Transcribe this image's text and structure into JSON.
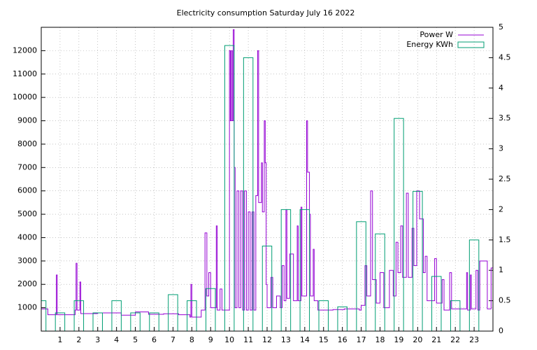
{
  "chart_data": {
    "type": "line",
    "title": "Electricity consumption Saturday July 16 2022",
    "xlim": [
      0,
      24
    ],
    "xticks": [
      1,
      2,
      3,
      4,
      5,
      6,
      7,
      8,
      9,
      10,
      11,
      12,
      13,
      14,
      15,
      16,
      17,
      18,
      19,
      20,
      21,
      22,
      23
    ],
    "ylim": [
      0,
      13000
    ],
    "yticks": [
      1000,
      2000,
      3000,
      4000,
      5000,
      6000,
      7000,
      8000,
      9000,
      10000,
      11000,
      12000
    ],
    "y2lim": [
      0,
      5
    ],
    "y2ticks": [
      0,
      0.5,
      1,
      1.5,
      2,
      2.5,
      3,
      3.5,
      4,
      4.5,
      5
    ],
    "grid": true,
    "legend": "top-right",
    "series": [
      {
        "name": "Power W",
        "color": "#9400d3",
        "style": "steps",
        "x": [
          0,
          0.35,
          0.8,
          0.85,
          1.8,
          1.85,
          1.9,
          2.05,
          2.1,
          3,
          4.25,
          5,
          5.7,
          6.5,
          7.3,
          7.9,
          7.95,
          8,
          8.5,
          8.7,
          8.8,
          8.9,
          9,
          9.3,
          9.35,
          9.5,
          9.6,
          10,
          10.05,
          10.1,
          10.15,
          10.2,
          10.25,
          10.3,
          10.4,
          10.5,
          10.6,
          10.7,
          10.8,
          10.9,
          11,
          11.1,
          11.2,
          11.3,
          11.4,
          11.5,
          11.55,
          11.7,
          11.75,
          11.85,
          11.9,
          11.95,
          12,
          12.2,
          12.3,
          12.5,
          12.7,
          12.8,
          12.9,
          13,
          13.05,
          13.2,
          13.4,
          13.6,
          13.65,
          13.8,
          13.85,
          14.1,
          14.15,
          14.25,
          14.3,
          14.45,
          14.5,
          14.7,
          15.5,
          16.1,
          16.9,
          17,
          17.2,
          17.3,
          17.5,
          17.6,
          17.8,
          18,
          18.2,
          18.5,
          18.7,
          18.85,
          18.95,
          19.1,
          19.2,
          19.4,
          19.5,
          19.7,
          19.8,
          19.95,
          20.1,
          20.3,
          20.4,
          20.5,
          20.9,
          21,
          21.3,
          21.4,
          21.7,
          21.8,
          22.2,
          22.6,
          22.65,
          22.8,
          22.85,
          23.1,
          23.2,
          23.3,
          23.7,
          23.9,
          24
        ],
        "values": [
          950,
          700,
          2400,
          700,
          900,
          2900,
          900,
          2100,
          750,
          780,
          680,
          820,
          720,
          740,
          700,
          600,
          2000,
          600,
          900,
          4200,
          1500,
          2500,
          1000,
          4500,
          900,
          1800,
          900,
          12000,
          9000,
          12000,
          9000,
          12900,
          7000,
          1000,
          6000,
          1000,
          6000,
          900,
          6000,
          900,
          5100,
          900,
          5100,
          900,
          5800,
          12000,
          5500,
          7200,
          5100,
          9000,
          7200,
          2000,
          1000,
          2300,
          1000,
          1500,
          1000,
          2800,
          1300,
          5200,
          1400,
          3300,
          1300,
          4500,
          1300,
          5300,
          1500,
          9000,
          6800,
          5000,
          1500,
          3500,
          1300,
          900,
          920,
          950,
          900,
          1100,
          2800,
          1500,
          6000,
          2200,
          1200,
          2500,
          1000,
          2600,
          1500,
          3800,
          2500,
          4500,
          2300,
          5900,
          2300,
          4400,
          2800,
          6000,
          4800,
          2500,
          3200,
          1300,
          3100,
          1200,
          2200,
          900,
          2500,
          950,
          950,
          2500,
          900,
          2400,
          950,
          2600,
          900,
          3000,
          950,
          2700,
          1000
        ]
      },
      {
        "name": "Energy KWh",
        "color": "#009e73",
        "style": "boxes",
        "axis": "y2",
        "x": [
          0,
          1,
          2,
          3,
          4,
          5,
          6,
          7,
          8,
          9,
          10,
          11,
          12,
          13,
          14,
          15,
          16,
          17,
          18,
          19,
          20,
          21,
          22,
          23
        ],
        "values": [
          0.5,
          0.3,
          0.5,
          0.3,
          0.5,
          0.3,
          0.3,
          0.6,
          0.5,
          0.7,
          4.7,
          4.5,
          1.4,
          2.0,
          2.0,
          0.5,
          0.4,
          1.8,
          1.6,
          3.5,
          2.3,
          0.9,
          0.5,
          1.5
        ]
      }
    ]
  }
}
